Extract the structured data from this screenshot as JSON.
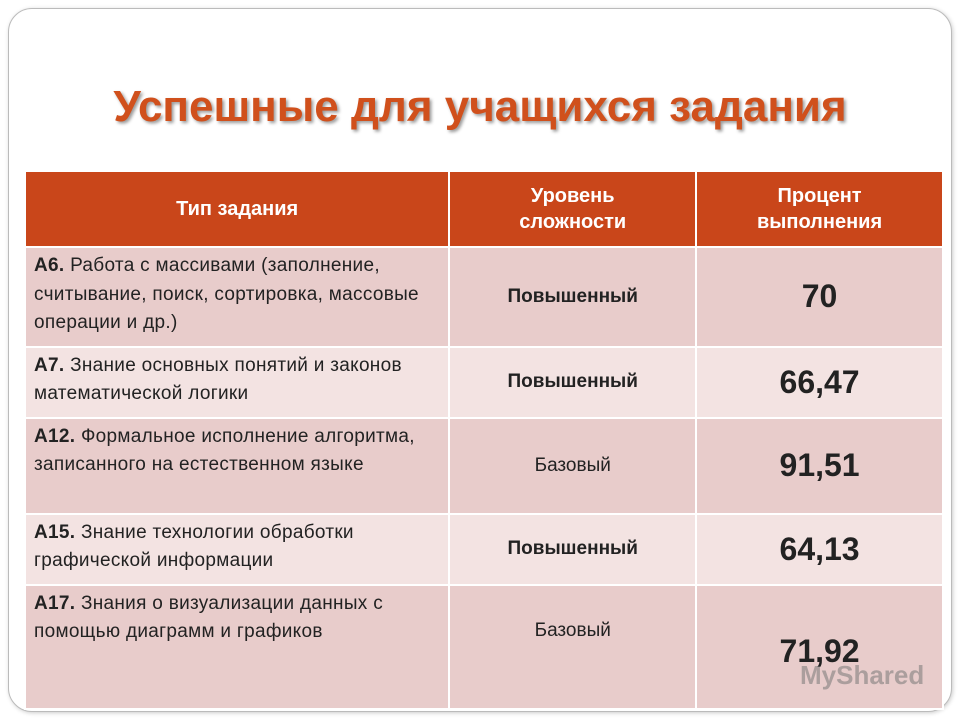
{
  "header": {
    "title": "Успешные для учащихся задания"
  },
  "table": {
    "columns": [
      "Тип задания",
      "Уровень сложности",
      "Процент выполнения"
    ],
    "rows": [
      {
        "code": "А6.",
        "text": "Работа с массивами (заполнение, считывание, поиск, сортировка, массовые операции и др.)",
        "level": "Повышенный",
        "level_bold": true,
        "percent": "70"
      },
      {
        "code": "А7.",
        "text": "Знание основных понятий и законов математической логики",
        "level": "Повышенный",
        "level_bold": true,
        "percent": "66,47"
      },
      {
        "code": "А12.",
        "text": "Формальное исполнение алгоритма, записанного на естественном языке",
        "level": "Базовый",
        "level_bold": false,
        "percent": "91,51"
      },
      {
        "code": "А15.",
        "text": "Знание технологии обработки графической информации",
        "level": "Повышенный",
        "level_bold": true,
        "percent": "64,13"
      },
      {
        "code": "А17.",
        "text": "Знания о визуализации данных с помощью диаграмм и графиков",
        "level": "Базовый",
        "level_bold": false,
        "percent": "71,92"
      }
    ]
  },
  "watermark": "MyShared"
}
